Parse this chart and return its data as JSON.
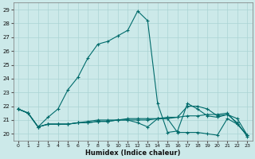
{
  "xlabel": "Humidex (Indice chaleur)",
  "ylabel": "",
  "bg_color": "#cce9e9",
  "grid_color": "#aad4d4",
  "line_color": "#006b6b",
  "xlim": [
    -0.5,
    23.5
  ],
  "ylim": [
    19.5,
    29.5
  ],
  "xticks": [
    0,
    1,
    2,
    3,
    4,
    5,
    6,
    7,
    8,
    9,
    10,
    11,
    12,
    13,
    14,
    15,
    16,
    17,
    18,
    19,
    20,
    21,
    22,
    23
  ],
  "yticks": [
    20,
    21,
    22,
    23,
    24,
    25,
    26,
    27,
    28,
    29
  ],
  "lines": [
    {
      "x": [
        0,
        1,
        2,
        3,
        4,
        5,
        6,
        7,
        8,
        9,
        10,
        11,
        12,
        13,
        14,
        15,
        16,
        17,
        18,
        19,
        20,
        21,
        22,
        23
      ],
      "y": [
        21.8,
        21.5,
        20.5,
        21.2,
        21.8,
        23.2,
        24.1,
        25.5,
        26.5,
        26.7,
        27.1,
        27.5,
        28.9,
        28.2,
        22.2,
        20.1,
        20.2,
        22.2,
        21.8,
        21.3,
        21.2,
        21.4,
        20.8,
        19.8
      ]
    },
    {
      "x": [
        0,
        1,
        2,
        3,
        4,
        5,
        6,
        7,
        8,
        9,
        10,
        11,
        12,
        13,
        14,
        15,
        16,
        17,
        18,
        19,
        20,
        21,
        22,
        23
      ],
      "y": [
        21.8,
        21.5,
        20.5,
        20.7,
        20.7,
        20.7,
        20.8,
        20.8,
        20.9,
        20.9,
        21.0,
        21.0,
        21.0,
        21.0,
        21.1,
        21.1,
        21.2,
        21.3,
        21.3,
        21.4,
        21.4,
        21.5,
        20.7,
        19.9
      ]
    },
    {
      "x": [
        0,
        1,
        2,
        3,
        4,
        5,
        6,
        7,
        8,
        9,
        10,
        11,
        12,
        13,
        14,
        15,
        16,
        17,
        18,
        19,
        20,
        21,
        22,
        23
      ],
      "y": [
        21.8,
        21.5,
        20.5,
        20.7,
        20.7,
        20.7,
        20.8,
        20.8,
        20.9,
        20.9,
        21.0,
        21.0,
        20.8,
        20.5,
        21.1,
        21.2,
        21.2,
        22.0,
        22.0,
        21.8,
        21.3,
        21.4,
        21.1,
        19.9
      ]
    },
    {
      "x": [
        0,
        1,
        2,
        3,
        4,
        5,
        6,
        7,
        8,
        9,
        10,
        11,
        12,
        13,
        14,
        15,
        16,
        17,
        18,
        19,
        20,
        21,
        22,
        23
      ],
      "y": [
        21.8,
        21.5,
        20.5,
        20.7,
        20.7,
        20.7,
        20.8,
        20.9,
        21.0,
        21.0,
        21.0,
        21.1,
        21.1,
        21.1,
        21.1,
        21.1,
        20.1,
        20.1,
        20.1,
        20.0,
        19.9,
        21.1,
        20.7,
        19.9
      ]
    }
  ]
}
